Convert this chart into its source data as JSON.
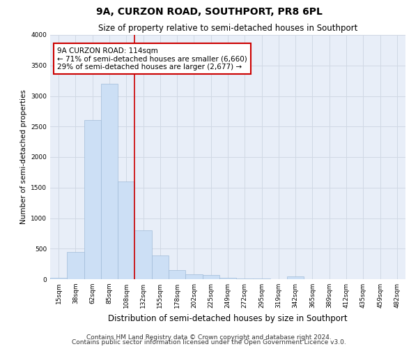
{
  "title": "9A, CURZON ROAD, SOUTHPORT, PR8 6PL",
  "subtitle": "Size of property relative to semi-detached houses in Southport",
  "xlabel": "Distribution of semi-detached houses by size in Southport",
  "ylabel": "Number of semi-detached properties",
  "footer1": "Contains HM Land Registry data © Crown copyright and database right 2024.",
  "footer2": "Contains public sector information licensed under the Open Government Licence v3.0.",
  "bin_labels": [
    "15sqm",
    "38sqm",
    "62sqm",
    "85sqm",
    "108sqm",
    "132sqm",
    "155sqm",
    "178sqm",
    "202sqm",
    "225sqm",
    "249sqm",
    "272sqm",
    "295sqm",
    "319sqm",
    "342sqm",
    "365sqm",
    "389sqm",
    "412sqm",
    "435sqm",
    "459sqm",
    "482sqm"
  ],
  "bar_heights": [
    25,
    450,
    2600,
    3200,
    1600,
    800,
    390,
    150,
    75,
    70,
    25,
    12,
    10,
    5,
    50,
    5,
    0,
    0,
    0,
    0,
    0
  ],
  "bar_color": "#ccdff5",
  "bar_edge_color": "#a0bcd8",
  "grid_color": "#d0d8e4",
  "vline_color": "#cc0000",
  "annotation_text": "9A CURZON ROAD: 114sqm\n← 71% of semi-detached houses are smaller (6,660)\n29% of semi-detached houses are larger (2,677) →",
  "annotation_box_color": "white",
  "annotation_box_edge": "#cc0000",
  "ylim": [
    0,
    4000
  ],
  "background_color": "#ffffff",
  "plot_bg_color": "#e8eef8",
  "title_fontsize": 10,
  "subtitle_fontsize": 8.5,
  "xlabel_fontsize": 8.5,
  "ylabel_fontsize": 7.5,
  "tick_fontsize": 6.5,
  "footer_fontsize": 6.5,
  "annotation_fontsize": 7.5
}
